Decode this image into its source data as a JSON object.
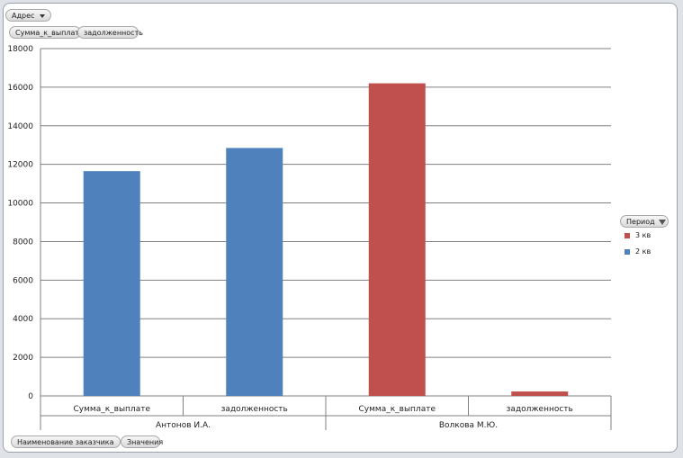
{
  "pivot": {
    "filter_field": "Адрес",
    "value_fields": [
      "Сумма_к_выплате",
      "задолженность"
    ],
    "axis_field": "Наименование заказчика",
    "values_field": "Значения",
    "legend_field": "Период"
  },
  "colors": {
    "3 кв": "#c0504d",
    "2 кв": "#4f81bd"
  },
  "chart_data": {
    "type": "bar",
    "ylim": [
      0,
      18000
    ],
    "yticks": [
      0,
      2000,
      4000,
      6000,
      8000,
      10000,
      12000,
      14000,
      16000,
      18000
    ],
    "grid": true,
    "legend_position": "right",
    "legend": [
      "3 кв",
      "2 кв"
    ],
    "groups": [
      {
        "name": "Антонов И.А.",
        "bars": [
          {
            "category": "Сумма_к_выплате",
            "series": "2 кв",
            "value": 11650
          },
          {
            "category": "задолженность",
            "series": "2 кв",
            "value": 12850
          }
        ]
      },
      {
        "name": "Волкова М.Ю.",
        "bars": [
          {
            "category": "Сумма_к_выплате",
            "series": "3 кв",
            "value": 16200
          },
          {
            "category": "задолженность",
            "series": "3 кв",
            "value": 230
          }
        ]
      }
    ]
  }
}
